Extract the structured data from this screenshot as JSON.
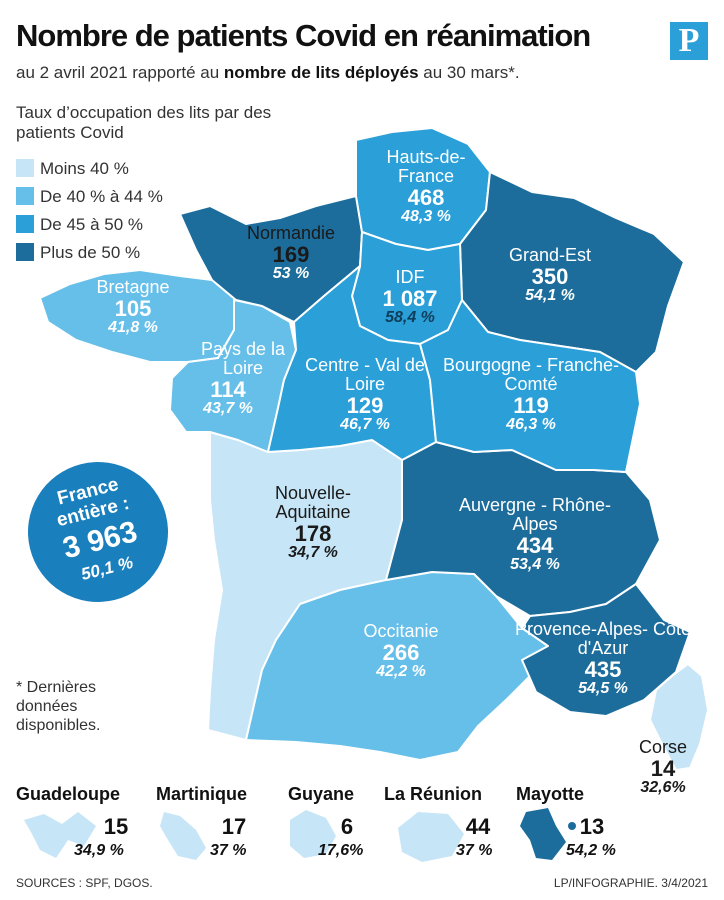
{
  "title": "Nombre de patients Covid en réanimation",
  "subtitle": {
    "part1": "au 2 avril 2021 rapporté au ",
    "bold": "nombre de lits déployés",
    "part2": " au 30 mars*."
  },
  "logo": "P",
  "legend": {
    "title": "Taux d’occupation des lits par des patients Covid",
    "items": [
      {
        "label": "Moins 40 %",
        "color": "#c6e5f7"
      },
      {
        "label": "De 40 % à 44 %",
        "color": "#66bfe9"
      },
      {
        "label": "De 45 à 50 %",
        "color": "#2a9fd8"
      },
      {
        "label": "Plus de 50 %",
        "color": "#1c6d9c"
      }
    ]
  },
  "colors": {
    "moins40": "#c6e5f7",
    "de40a44": "#66bfe9",
    "de45a50": "#2a9fd8",
    "plus50": "#1c6d9c",
    "border": "#ffffff",
    "badge": "#1a7fbd"
  },
  "regions": {
    "hauts_de_france": {
      "name": "Hauts-de-France",
      "value": "468",
      "pct": "48,3 %"
    },
    "normandie": {
      "name": "Normandie",
      "value": "169",
      "pct": "53 %"
    },
    "grand_est": {
      "name": "Grand-Est",
      "value": "350",
      "pct": "54,1 %"
    },
    "idf": {
      "name": "IDF",
      "value": "1 087",
      "pct": "58,4 %"
    },
    "bretagne": {
      "name": "Bretagne",
      "value": "105",
      "pct": "41,8 %"
    },
    "pays_de_la_loire": {
      "name": "Pays de la Loire",
      "value": "114",
      "pct": "43,7 %"
    },
    "centre_val_de_loire": {
      "name": "Centre - Val de Loire",
      "value": "129",
      "pct": "46,7 %"
    },
    "bourgogne_franche_comte": {
      "name": "Bourgogne - Franche-Comté",
      "value": "119",
      "pct": "46,3 %"
    },
    "nouvelle_aquitaine": {
      "name": "Nouvelle-Aquitaine",
      "value": "178",
      "pct": "34,7 %"
    },
    "auvergne_rhone_alpes": {
      "name": "Auvergne - Rhône-Alpes",
      "value": "434",
      "pct": "53,4 %"
    },
    "occitanie": {
      "name": "Occitanie",
      "value": "266",
      "pct": "42,2 %"
    },
    "paca": {
      "name": "Provence-Alpes- Côte d'Azur",
      "value": "435",
      "pct": "54,5 %"
    },
    "corse": {
      "name": "Corse",
      "value": "14",
      "pct": "32,6%"
    }
  },
  "france_entiere": {
    "name": "France entière :",
    "value": "3 963",
    "pct": "50,1 %"
  },
  "note": "* Dernières données disponibles.",
  "dom": [
    {
      "name": "Guadeloupe",
      "value": "15",
      "pct": "34,9 %"
    },
    {
      "name": "Martinique",
      "value": "17",
      "pct": "37 %"
    },
    {
      "name": "Guyane",
      "value": "6",
      "pct": "17,6%"
    },
    {
      "name": "La Réunion",
      "value": "44",
      "pct": "37 %"
    },
    {
      "name": "Mayotte",
      "value": "13",
      "pct": "54,2 %"
    }
  ],
  "footer": {
    "sources": "SOURCES : SPF, DGOS.",
    "credit": "LP/INFOGRAPHIE.  3/4/2021"
  }
}
